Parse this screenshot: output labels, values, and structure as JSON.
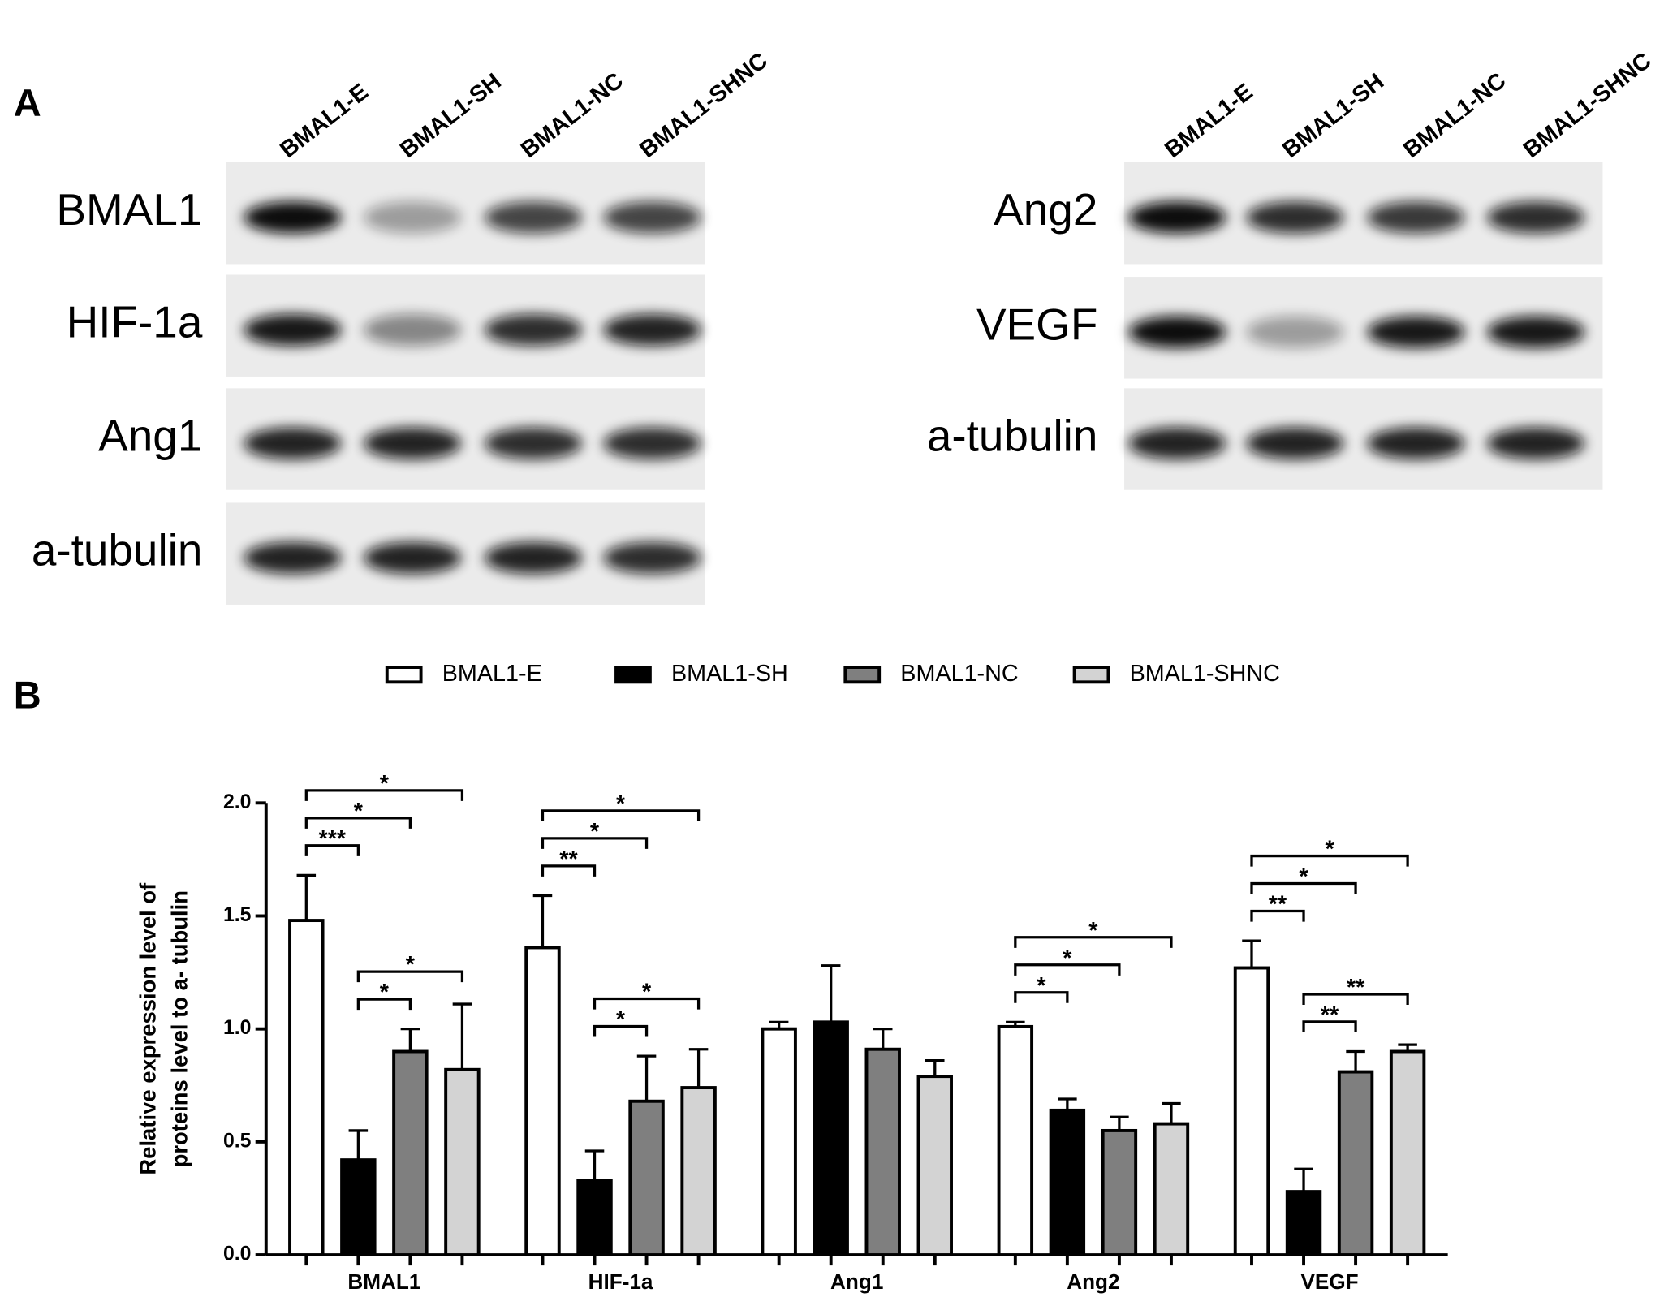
{
  "panels": {
    "a": "A",
    "b": "B"
  },
  "blots": {
    "left": {
      "lanes": [
        "BMAL1-E",
        "BMAL1-SH",
        "BMAL1-NC",
        "BMAL1-SHNC"
      ],
      "rows": [
        "BMAL1",
        "HIF-1a",
        "Ang1",
        "a-tubulin"
      ]
    },
    "right": {
      "lanes": [
        "BMAL1-E",
        "BMAL1-SH",
        "BMAL1-NC",
        "BMAL1-SHNC"
      ],
      "rows": [
        "Ang2",
        "VEGF",
        "a-tubulin"
      ]
    }
  },
  "chart_data": {
    "type": "bar",
    "y_label": [
      "Relative expression level of",
      "proteins level to a- tubulin"
    ],
    "categories": [
      "BMAL1",
      "HIF-1a",
      "Ang1",
      "Ang2",
      "VEGF"
    ],
    "series": [
      {
        "name": "BMAL1-E",
        "color": "#ffffff",
        "values": [
          1.48,
          1.36,
          1.0,
          1.01,
          1.27
        ],
        "errors": [
          0.2,
          0.23,
          0.03,
          0.02,
          0.12
        ]
      },
      {
        "name": "BMAL1-SH",
        "color": "#000000",
        "values": [
          0.42,
          0.33,
          1.03,
          0.64,
          0.28
        ],
        "errors": [
          0.13,
          0.13,
          0.25,
          0.05,
          0.1
        ]
      },
      {
        "name": "BMAL1-NC",
        "color": "#7f7f7f",
        "values": [
          0.9,
          0.68,
          0.91,
          0.55,
          0.81
        ],
        "errors": [
          0.1,
          0.2,
          0.09,
          0.06,
          0.09
        ]
      },
      {
        "name": "BMAL1-SHNC",
        "color": "#d3d3d3",
        "values": [
          0.82,
          0.74,
          0.79,
          0.58,
          0.9
        ],
        "errors": [
          0.29,
          0.17,
          0.07,
          0.09,
          0.03
        ]
      }
    ],
    "ylim": [
      0,
      2.0
    ],
    "yticks": [
      {
        "value": 0,
        "label": "0.0"
      },
      {
        "value": 0.5,
        "label": "0.5"
      },
      {
        "value": 1.0,
        "label": "1.0"
      },
      {
        "value": 1.5,
        "label": "1.5"
      },
      {
        "value": 2.0,
        "label": "2.0"
      }
    ],
    "legend": "top",
    "annotations": [
      {
        "category": "BMAL1",
        "from": "BMAL1-E",
        "to": "BMAL1-SH",
        "label": "***"
      },
      {
        "category": "BMAL1",
        "from": "BMAL1-E",
        "to": "BMAL1-NC",
        "label": "*"
      },
      {
        "category": "BMAL1",
        "from": "BMAL1-E",
        "to": "BMAL1-SHNC",
        "label": "*"
      },
      {
        "category": "BMAL1",
        "from": "BMAL1-SH",
        "to": "BMAL1-NC",
        "label": "*"
      },
      {
        "category": "BMAL1",
        "from": "BMAL1-SH",
        "to": "BMAL1-SHNC",
        "label": "*"
      },
      {
        "category": "HIF-1a",
        "from": "BMAL1-E",
        "to": "BMAL1-SH",
        "label": "**"
      },
      {
        "category": "HIF-1a",
        "from": "BMAL1-E",
        "to": "BMAL1-NC",
        "label": "*"
      },
      {
        "category": "HIF-1a",
        "from": "BMAL1-E",
        "to": "BMAL1-SHNC",
        "label": "*"
      },
      {
        "category": "HIF-1a",
        "from": "BMAL1-SH",
        "to": "BMAL1-NC",
        "label": "*"
      },
      {
        "category": "HIF-1a",
        "from": "BMAL1-SH",
        "to": "BMAL1-SHNC",
        "label": "*"
      },
      {
        "category": "Ang2",
        "from": "BMAL1-E",
        "to": "BMAL1-SH",
        "label": "*"
      },
      {
        "category": "Ang2",
        "from": "BMAL1-E",
        "to": "BMAL1-NC",
        "label": "*"
      },
      {
        "category": "Ang2",
        "from": "BMAL1-E",
        "to": "BMAL1-SHNC",
        "label": "*"
      },
      {
        "category": "VEGF",
        "from": "BMAL1-E",
        "to": "BMAL1-SH",
        "label": "**"
      },
      {
        "category": "VEGF",
        "from": "BMAL1-E",
        "to": "BMAL1-NC",
        "label": "*"
      },
      {
        "category": "VEGF",
        "from": "BMAL1-E",
        "to": "BMAL1-SHNC",
        "label": "*"
      },
      {
        "category": "VEGF",
        "from": "BMAL1-SH",
        "to": "BMAL1-NC",
        "label": "**"
      },
      {
        "category": "VEGF",
        "from": "BMAL1-SH",
        "to": "BMAL1-SHNC",
        "label": "**"
      }
    ]
  }
}
